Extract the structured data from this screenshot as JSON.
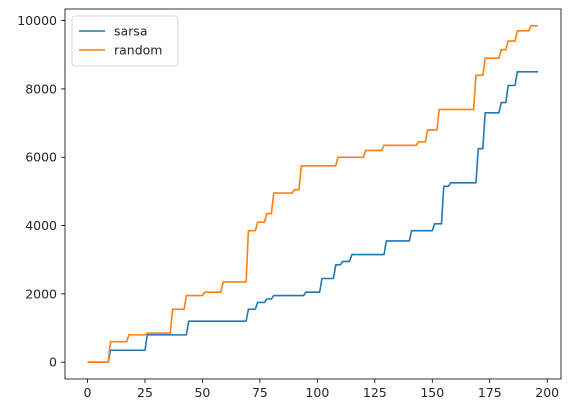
{
  "chart_data": {
    "type": "line",
    "title": "",
    "xlabel": "",
    "ylabel": "",
    "xlim": [
      -9.8,
      206
    ],
    "ylim": [
      -492,
      10340
    ],
    "xticks": [
      0,
      25,
      50,
      75,
      100,
      125,
      150,
      175,
      200
    ],
    "yticks": [
      0,
      2000,
      4000,
      6000,
      8000,
      10000
    ],
    "grid": false,
    "legend_position": "top-left",
    "series": [
      {
        "name": "sarsa",
        "color": "#1f77b4",
        "points": [
          [
            0,
            0
          ],
          [
            9,
            0
          ],
          [
            10,
            350
          ],
          [
            25,
            350
          ],
          [
            26,
            800
          ],
          [
            43,
            800
          ],
          [
            44,
            1200
          ],
          [
            69,
            1200
          ],
          [
            70,
            1550
          ],
          [
            73,
            1550
          ],
          [
            74,
            1750
          ],
          [
            77,
            1750
          ],
          [
            78,
            1850
          ],
          [
            80,
            1850
          ],
          [
            81,
            1950
          ],
          [
            94,
            1950
          ],
          [
            95,
            2050
          ],
          [
            101,
            2050
          ],
          [
            102,
            2450
          ],
          [
            107,
            2450
          ],
          [
            108,
            2850
          ],
          [
            110,
            2850
          ],
          [
            111,
            2950
          ],
          [
            114,
            2950
          ],
          [
            115,
            3150
          ],
          [
            129,
            3150
          ],
          [
            130,
            3550
          ],
          [
            140,
            3550
          ],
          [
            141,
            3850
          ],
          [
            150,
            3850
          ],
          [
            151,
            4050
          ],
          [
            154,
            4050
          ],
          [
            155,
            5150
          ],
          [
            157,
            5150
          ],
          [
            158,
            5250
          ],
          [
            169,
            5250
          ],
          [
            170,
            6250
          ],
          [
            172,
            6250
          ],
          [
            173,
            7300
          ],
          [
            179,
            7300
          ],
          [
            180,
            7600
          ],
          [
            182,
            7600
          ],
          [
            183,
            8100
          ],
          [
            186,
            8100
          ],
          [
            187,
            8500
          ],
          [
            196,
            8500
          ]
        ]
      },
      {
        "name": "random",
        "color": "#ff7f0e",
        "points": [
          [
            0,
            0
          ],
          [
            9,
            0
          ],
          [
            10,
            600
          ],
          [
            17,
            600
          ],
          [
            18,
            800
          ],
          [
            25,
            800
          ],
          [
            26,
            850
          ],
          [
            36,
            850
          ],
          [
            37,
            1550
          ],
          [
            42,
            1550
          ],
          [
            43,
            1950
          ],
          [
            50,
            1950
          ],
          [
            51,
            2050
          ],
          [
            58,
            2050
          ],
          [
            59,
            2350
          ],
          [
            69,
            2350
          ],
          [
            70,
            3850
          ],
          [
            73,
            3850
          ],
          [
            74,
            4100
          ],
          [
            77,
            4100
          ],
          [
            78,
            4350
          ],
          [
            80,
            4350
          ],
          [
            81,
            4950
          ],
          [
            89,
            4950
          ],
          [
            90,
            5050
          ],
          [
            92,
            5050
          ],
          [
            93,
            5750
          ],
          [
            108,
            5750
          ],
          [
            109,
            6000
          ],
          [
            120,
            6000
          ],
          [
            121,
            6200
          ],
          [
            128,
            6200
          ],
          [
            129,
            6350
          ],
          [
            143,
            6350
          ],
          [
            144,
            6450
          ],
          [
            147,
            6450
          ],
          [
            148,
            6800
          ],
          [
            152,
            6800
          ],
          [
            153,
            7400
          ],
          [
            168,
            7400
          ],
          [
            169,
            8400
          ],
          [
            172,
            8400
          ],
          [
            173,
            8900
          ],
          [
            179,
            8900
          ],
          [
            180,
            9150
          ],
          [
            182,
            9150
          ],
          [
            183,
            9400
          ],
          [
            186,
            9400
          ],
          [
            187,
            9700
          ],
          [
            192,
            9700
          ],
          [
            193,
            9850
          ],
          [
            196,
            9850
          ]
        ]
      }
    ]
  }
}
